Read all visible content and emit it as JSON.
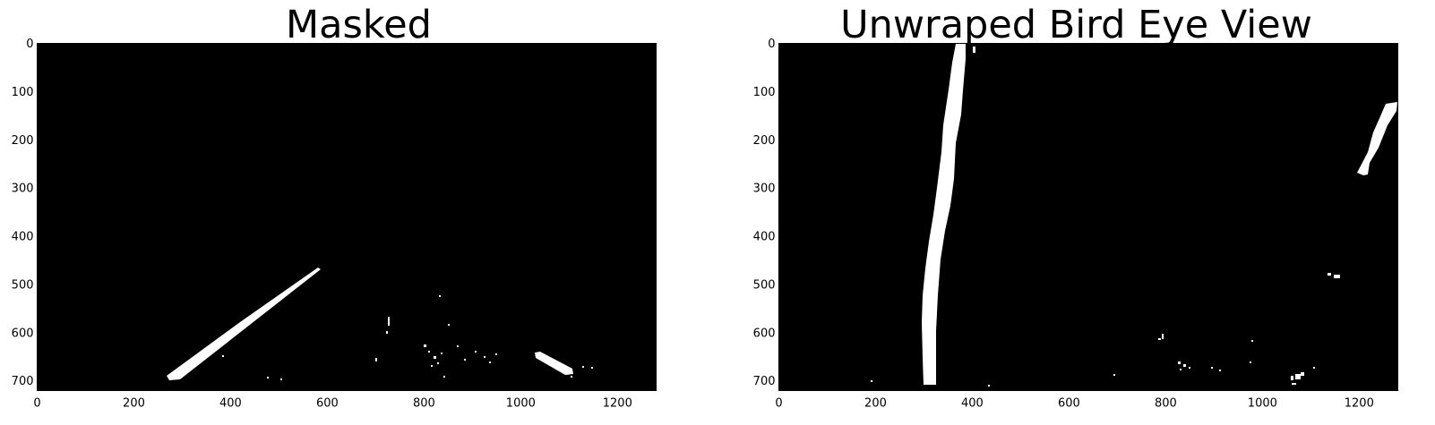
{
  "panels": [
    {
      "title": "Masked",
      "x_ticks": [
        "0",
        "200",
        "400",
        "600",
        "800",
        "1000",
        "1200"
      ],
      "y_ticks": [
        "0",
        "100",
        "200",
        "300",
        "400",
        "500",
        "600",
        "700"
      ],
      "background_color": "#000000",
      "foreground_color": "#ffffff"
    },
    {
      "title": "Unwraped Bird Eye View",
      "x_ticks": [
        "0",
        "200",
        "400",
        "600",
        "800",
        "1000",
        "1200"
      ],
      "y_ticks": [
        "0",
        "100",
        "200",
        "300",
        "400",
        "500",
        "600",
        "700"
      ],
      "background_color": "#000000",
      "foreground_color": "#ffffff"
    }
  ]
}
